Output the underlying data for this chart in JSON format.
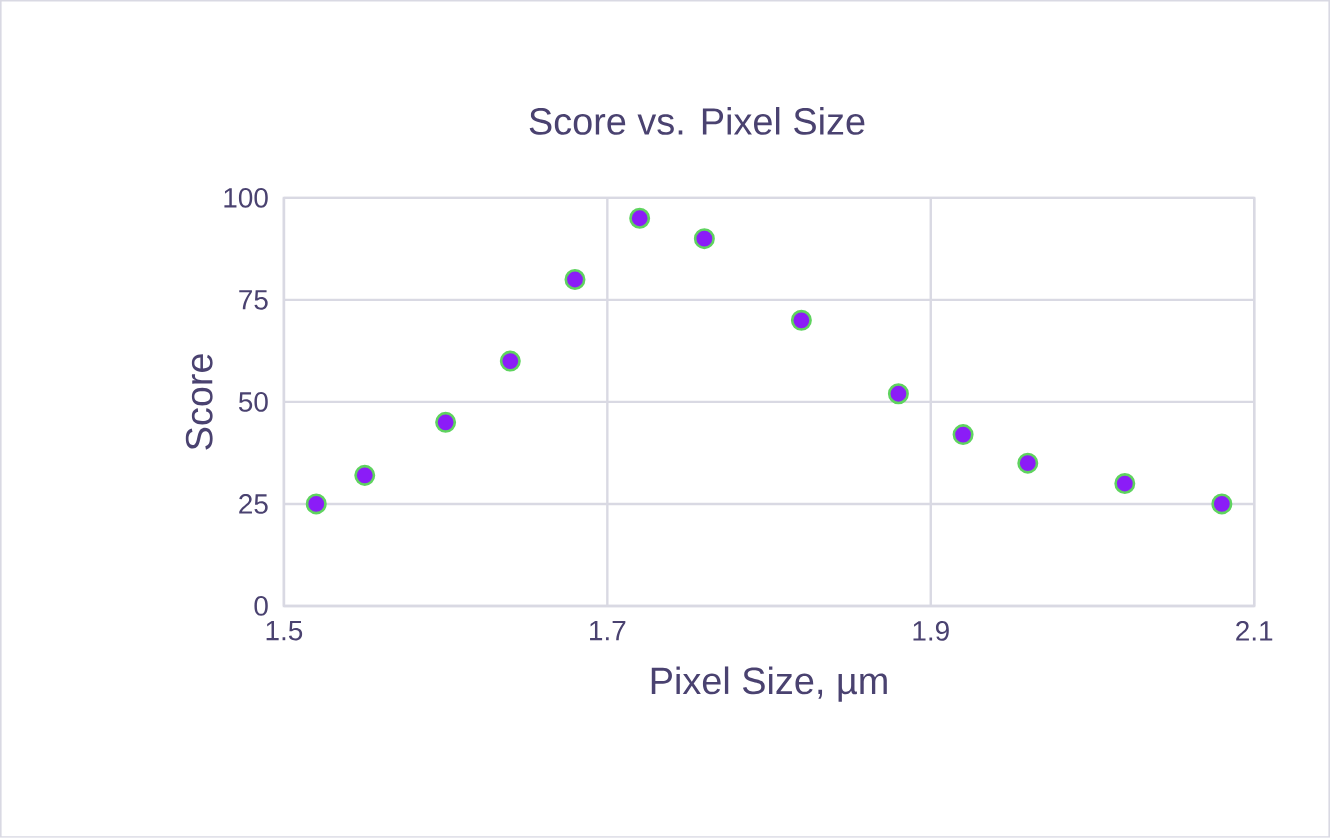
{
  "chart_data": {
    "type": "scatter",
    "title": "Score vs. Pixel Size",
    "xlabel": "Pixel Size, µm",
    "ylabel": "Score",
    "series": [
      {
        "color": "#8b1cf7",
        "x": [
          1.52,
          1.55,
          1.6,
          1.64,
          1.68,
          1.72,
          1.76,
          1.82,
          1.88,
          1.92,
          1.96,
          2.02,
          2.08
        ],
        "values": [
          25,
          32,
          45,
          60,
          80,
          95,
          90,
          70,
          52,
          42,
          35,
          30,
          25
        ]
      }
    ],
    "xlim": [
      1.5,
      2.1
    ],
    "xticks": [
      1.5,
      1.7,
      1.9,
      2.1
    ],
    "ylim": [
      0,
      100
    ],
    "yticks": [
      0,
      25,
      50,
      75,
      100
    ],
    "grid": true,
    "marker": "circle"
  }
}
